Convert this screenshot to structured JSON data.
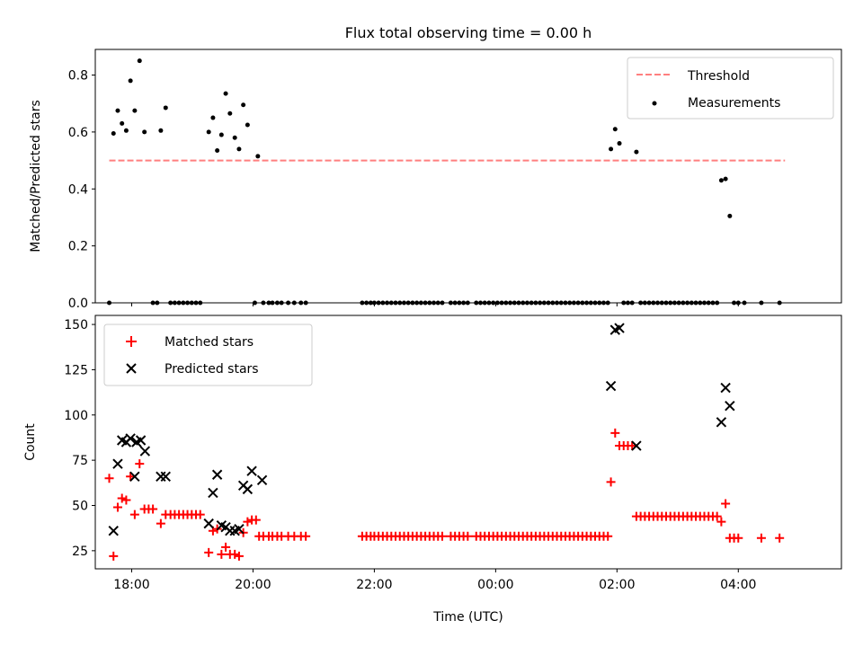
{
  "figure": {
    "title": "Flux total observing time = 0.00 h"
  },
  "chart_data": [
    {
      "type": "scatter",
      "panel": "top",
      "ylabel": "Matched/Predicted stars",
      "xlabel": "",
      "xlim": [
        17.4,
        29.7
      ],
      "ylim": [
        0,
        0.89
      ],
      "yticks": [
        0.0,
        0.2,
        0.4,
        0.6,
        0.8
      ],
      "ytick_labels": [
        "0.0",
        "0.2",
        "0.4",
        "0.6",
        "0.8"
      ],
      "xticks": [
        18,
        20,
        22,
        24,
        26,
        28
      ],
      "legend": {
        "position": "upper right",
        "entries": [
          "Threshold",
          "Measurements"
        ]
      },
      "colors": {
        "threshold": "#ff7f7f",
        "measurements": "#000000"
      },
      "threshold": {
        "name": "Threshold",
        "x": [
          17.63,
          28.77
        ],
        "y": 0.5
      },
      "measurements": {
        "name": "Measurements",
        "points": [
          [
            17.63,
            0.0
          ],
          [
            17.7,
            0.595
          ],
          [
            17.77,
            0.675
          ],
          [
            17.84,
            0.63
          ],
          [
            17.91,
            0.605
          ],
          [
            17.98,
            0.78
          ],
          [
            18.05,
            0.675
          ],
          [
            18.13,
            0.85
          ],
          [
            18.21,
            0.6
          ],
          [
            18.35,
            0.0
          ],
          [
            18.42,
            0.0
          ],
          [
            18.48,
            0.605
          ],
          [
            18.56,
            0.685
          ],
          [
            18.64,
            0.0
          ],
          [
            18.71,
            0.0
          ],
          [
            18.78,
            0.0
          ],
          [
            18.85,
            0.0
          ],
          [
            18.92,
            0.0
          ],
          [
            18.99,
            0.0
          ],
          [
            19.06,
            0.0
          ],
          [
            19.13,
            0.0
          ],
          [
            19.27,
            0.6
          ],
          [
            19.34,
            0.65
          ],
          [
            19.41,
            0.535
          ],
          [
            19.48,
            0.59
          ],
          [
            19.55,
            0.735
          ],
          [
            19.62,
            0.665
          ],
          [
            19.7,
            0.58
          ],
          [
            19.77,
            0.54
          ],
          [
            19.84,
            0.695
          ],
          [
            19.91,
            0.625
          ],
          [
            20.03,
            0.0
          ],
          [
            20.08,
            0.515
          ],
          [
            20.17,
            0.0
          ],
          [
            20.26,
            0.0
          ],
          [
            20.32,
            0.0
          ],
          [
            20.4,
            0.0
          ],
          [
            20.47,
            0.0
          ],
          [
            20.58,
            0.0
          ],
          [
            20.68,
            0.0
          ],
          [
            20.79,
            0.0
          ],
          [
            20.87,
            0.0
          ],
          [
            21.8,
            0.0
          ],
          [
            21.87,
            0.0
          ],
          [
            21.94,
            0.0
          ],
          [
            22.0,
            0.0
          ],
          [
            22.07,
            0.0
          ],
          [
            22.14,
            0.0
          ],
          [
            22.21,
            0.0
          ],
          [
            22.28,
            0.0
          ],
          [
            22.35,
            0.0
          ],
          [
            22.42,
            0.0
          ],
          [
            22.49,
            0.0
          ],
          [
            22.56,
            0.0
          ],
          [
            22.63,
            0.0
          ],
          [
            22.7,
            0.0
          ],
          [
            22.77,
            0.0
          ],
          [
            22.84,
            0.0
          ],
          [
            22.91,
            0.0
          ],
          [
            22.98,
            0.0
          ],
          [
            23.05,
            0.0
          ],
          [
            23.12,
            0.0
          ],
          [
            23.26,
            0.0
          ],
          [
            23.33,
            0.0
          ],
          [
            23.4,
            0.0
          ],
          [
            23.47,
            0.0
          ],
          [
            23.54,
            0.0
          ],
          [
            23.68,
            0.0
          ],
          [
            23.75,
            0.0
          ],
          [
            23.82,
            0.0
          ],
          [
            23.89,
            0.0
          ],
          [
            23.96,
            0.0
          ],
          [
            24.03,
            0.0
          ],
          [
            24.1,
            0.0
          ],
          [
            24.17,
            0.0
          ],
          [
            24.24,
            0.0
          ],
          [
            24.31,
            0.0
          ],
          [
            24.38,
            0.0
          ],
          [
            24.45,
            0.0
          ],
          [
            24.52,
            0.0
          ],
          [
            24.59,
            0.0
          ],
          [
            24.66,
            0.0
          ],
          [
            24.73,
            0.0
          ],
          [
            24.8,
            0.0
          ],
          [
            24.87,
            0.0
          ],
          [
            24.94,
            0.0
          ],
          [
            25.01,
            0.0
          ],
          [
            25.08,
            0.0
          ],
          [
            25.15,
            0.0
          ],
          [
            25.22,
            0.0
          ],
          [
            25.29,
            0.0
          ],
          [
            25.36,
            0.0
          ],
          [
            25.43,
            0.0
          ],
          [
            25.5,
            0.0
          ],
          [
            25.57,
            0.0
          ],
          [
            25.64,
            0.0
          ],
          [
            25.71,
            0.0
          ],
          [
            25.78,
            0.0
          ],
          [
            25.85,
            0.0
          ],
          [
            25.9,
            0.54
          ],
          [
            25.97,
            0.61
          ],
          [
            26.04,
            0.56
          ],
          [
            26.11,
            0.0
          ],
          [
            26.18,
            0.0
          ],
          [
            26.25,
            0.0
          ],
          [
            26.32,
            0.53
          ],
          [
            26.39,
            0.0
          ],
          [
            26.46,
            0.0
          ],
          [
            26.53,
            0.0
          ],
          [
            26.6,
            0.0
          ],
          [
            26.67,
            0.0
          ],
          [
            26.74,
            0.0
          ],
          [
            26.81,
            0.0
          ],
          [
            26.88,
            0.0
          ],
          [
            26.95,
            0.0
          ],
          [
            27.02,
            0.0
          ],
          [
            27.09,
            0.0
          ],
          [
            27.16,
            0.0
          ],
          [
            27.23,
            0.0
          ],
          [
            27.3,
            0.0
          ],
          [
            27.37,
            0.0
          ],
          [
            27.44,
            0.0
          ],
          [
            27.51,
            0.0
          ],
          [
            27.58,
            0.0
          ],
          [
            27.65,
            0.0
          ],
          [
            27.72,
            0.43
          ],
          [
            27.79,
            0.435
          ],
          [
            27.86,
            0.305
          ],
          [
            27.93,
            0.0
          ],
          [
            28.0,
            0.0
          ],
          [
            28.1,
            0.0
          ],
          [
            28.38,
            0.0
          ],
          [
            28.68,
            0.0
          ]
        ]
      }
    },
    {
      "type": "scatter",
      "panel": "bottom",
      "xlabel": "Time (UTC)",
      "ylabel": "Count",
      "xlim": [
        17.4,
        29.7
      ],
      "ylim": [
        15,
        155
      ],
      "yticks": [
        25,
        50,
        75,
        100,
        125,
        150
      ],
      "ytick_labels": [
        "25",
        "50",
        "75",
        "100",
        "125",
        "150"
      ],
      "xticks": [
        18,
        20,
        22,
        24,
        26,
        28
      ],
      "xtick_labels": [
        "18:00",
        "20:00",
        "22:00",
        "00:00",
        "02:00",
        "04:00"
      ],
      "legend": {
        "position": "upper left",
        "entries": [
          "Matched stars",
          "Predicted stars"
        ]
      },
      "colors": {
        "matched": "#ff0000",
        "predicted": "#000000"
      },
      "matched": {
        "name": "Matched stars",
        "points": [
          [
            17.63,
            65
          ],
          [
            17.7,
            22
          ],
          [
            17.77,
            49
          ],
          [
            17.84,
            54
          ],
          [
            17.91,
            53
          ],
          [
            17.98,
            66
          ],
          [
            18.05,
            45
          ],
          [
            18.13,
            73
          ],
          [
            18.21,
            48
          ],
          [
            18.28,
            48
          ],
          [
            18.35,
            48
          ],
          [
            18.48,
            40
          ],
          [
            18.56,
            45
          ],
          [
            18.64,
            45
          ],
          [
            18.71,
            45
          ],
          [
            18.78,
            45
          ],
          [
            18.85,
            45
          ],
          [
            18.92,
            45
          ],
          [
            18.99,
            45
          ],
          [
            19.06,
            45
          ],
          [
            19.13,
            45
          ],
          [
            19.27,
            24
          ],
          [
            19.34,
            36
          ],
          [
            19.41,
            37
          ],
          [
            19.48,
            23
          ],
          [
            19.55,
            27
          ],
          [
            19.62,
            23
          ],
          [
            19.7,
            23
          ],
          [
            19.77,
            22
          ],
          [
            19.84,
            35
          ],
          [
            19.91,
            41
          ],
          [
            19.98,
            42
          ],
          [
            20.05,
            42
          ],
          [
            20.1,
            33
          ],
          [
            20.17,
            33
          ],
          [
            20.26,
            33
          ],
          [
            20.32,
            33
          ],
          [
            20.4,
            33
          ],
          [
            20.47,
            33
          ],
          [
            20.58,
            33
          ],
          [
            20.68,
            33
          ],
          [
            20.79,
            33
          ],
          [
            20.87,
            33
          ],
          [
            21.8,
            33
          ],
          [
            21.87,
            33
          ],
          [
            21.94,
            33
          ],
          [
            22.0,
            33
          ],
          [
            22.07,
            33
          ],
          [
            22.14,
            33
          ],
          [
            22.21,
            33
          ],
          [
            22.28,
            33
          ],
          [
            22.35,
            33
          ],
          [
            22.42,
            33
          ],
          [
            22.49,
            33
          ],
          [
            22.56,
            33
          ],
          [
            22.63,
            33
          ],
          [
            22.7,
            33
          ],
          [
            22.77,
            33
          ],
          [
            22.84,
            33
          ],
          [
            22.91,
            33
          ],
          [
            22.98,
            33
          ],
          [
            23.05,
            33
          ],
          [
            23.12,
            33
          ],
          [
            23.26,
            33
          ],
          [
            23.33,
            33
          ],
          [
            23.4,
            33
          ],
          [
            23.47,
            33
          ],
          [
            23.54,
            33
          ],
          [
            23.68,
            33
          ],
          [
            23.75,
            33
          ],
          [
            23.82,
            33
          ],
          [
            23.89,
            33
          ],
          [
            23.96,
            33
          ],
          [
            24.03,
            33
          ],
          [
            24.1,
            33
          ],
          [
            24.17,
            33
          ],
          [
            24.24,
            33
          ],
          [
            24.31,
            33
          ],
          [
            24.38,
            33
          ],
          [
            24.45,
            33
          ],
          [
            24.52,
            33
          ],
          [
            24.59,
            33
          ],
          [
            24.66,
            33
          ],
          [
            24.73,
            33
          ],
          [
            24.8,
            33
          ],
          [
            24.87,
            33
          ],
          [
            24.94,
            33
          ],
          [
            25.01,
            33
          ],
          [
            25.08,
            33
          ],
          [
            25.15,
            33
          ],
          [
            25.22,
            33
          ],
          [
            25.29,
            33
          ],
          [
            25.36,
            33
          ],
          [
            25.43,
            33
          ],
          [
            25.5,
            33
          ],
          [
            25.57,
            33
          ],
          [
            25.64,
            33
          ],
          [
            25.71,
            33
          ],
          [
            25.78,
            33
          ],
          [
            25.85,
            33
          ],
          [
            25.9,
            63
          ],
          [
            25.97,
            90
          ],
          [
            26.04,
            83
          ],
          [
            26.11,
            83
          ],
          [
            26.18,
            83
          ],
          [
            26.25,
            83
          ],
          [
            26.32,
            44
          ],
          [
            26.39,
            44
          ],
          [
            26.46,
            44
          ],
          [
            26.53,
            44
          ],
          [
            26.6,
            44
          ],
          [
            26.67,
            44
          ],
          [
            26.74,
            44
          ],
          [
            26.81,
            44
          ],
          [
            26.88,
            44
          ],
          [
            26.95,
            44
          ],
          [
            27.02,
            44
          ],
          [
            27.09,
            44
          ],
          [
            27.16,
            44
          ],
          [
            27.23,
            44
          ],
          [
            27.3,
            44
          ],
          [
            27.37,
            44
          ],
          [
            27.44,
            44
          ],
          [
            27.51,
            44
          ],
          [
            27.58,
            44
          ],
          [
            27.65,
            44
          ],
          [
            27.72,
            41
          ],
          [
            27.79,
            51
          ],
          [
            27.86,
            32
          ],
          [
            27.93,
            32
          ],
          [
            28.0,
            32
          ],
          [
            28.38,
            32
          ],
          [
            28.68,
            32
          ]
        ]
      },
      "predicted": {
        "name": "Predicted stars",
        "points": [
          [
            17.7,
            36
          ],
          [
            17.77,
            73
          ],
          [
            17.84,
            86
          ],
          [
            17.91,
            85
          ],
          [
            17.98,
            87
          ],
          [
            18.05,
            66
          ],
          [
            18.08,
            85
          ],
          [
            18.15,
            86
          ],
          [
            18.22,
            80
          ],
          [
            18.48,
            66
          ],
          [
            18.56,
            66
          ],
          [
            19.27,
            40
          ],
          [
            19.34,
            57
          ],
          [
            19.41,
            67
          ],
          [
            19.48,
            39
          ],
          [
            19.55,
            38
          ],
          [
            19.62,
            36
          ],
          [
            19.7,
            36
          ],
          [
            19.77,
            37
          ],
          [
            19.84,
            61
          ],
          [
            19.91,
            59
          ],
          [
            19.98,
            69
          ],
          [
            20.15,
            64
          ],
          [
            25.9,
            116
          ],
          [
            25.97,
            147
          ],
          [
            26.04,
            148
          ],
          [
            26.32,
            83
          ],
          [
            27.72,
            96
          ],
          [
            27.79,
            115
          ],
          [
            27.86,
            105
          ]
        ]
      }
    }
  ]
}
